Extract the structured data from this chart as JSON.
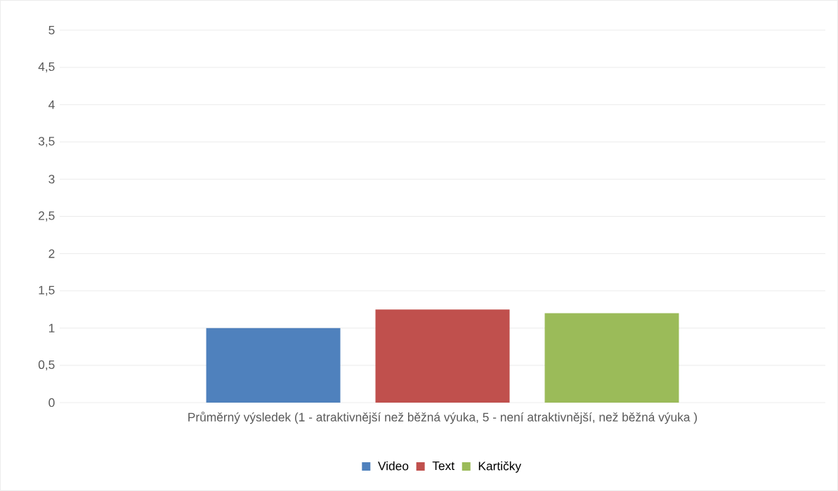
{
  "chart_data": {
    "type": "bar",
    "categories": [
      "Průměrný výsledek (1 - atraktivnější než běžná výuka, 5 - není atraktivnější, než běžná výuka )"
    ],
    "series": [
      {
        "name": "Video",
        "color": "#4f81bd",
        "values": [
          1.0
        ]
      },
      {
        "name": "Text",
        "color": "#c0504d",
        "values": [
          1.25
        ]
      },
      {
        "name": "Kartičky",
        "color": "#9bbb59",
        "values": [
          1.2
        ]
      }
    ],
    "ylim": [
      0,
      5
    ],
    "yticks": [
      0,
      {
        "value": 0.5,
        "label": "0,5"
      },
      1,
      {
        "value": 1.5,
        "label": "1,5"
      },
      2,
      {
        "value": 2.5,
        "label": "2,5"
      },
      3,
      {
        "value": 3.5,
        "label": "3,5"
      },
      4,
      {
        "value": 4.5,
        "label": "4,5"
      },
      5
    ],
    "grid": "y",
    "legend": "bottom"
  }
}
